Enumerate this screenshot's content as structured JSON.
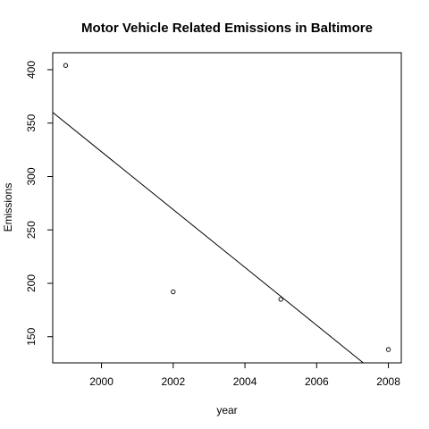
{
  "chart_data": {
    "type": "scatter",
    "title": "Motor Vehicle Related Emissions in Baltimore",
    "xlabel": "year",
    "ylabel": "Emissions",
    "xlim": [
      1998.64,
      2008.36
    ],
    "ylim": [
      125.52,
      415.88
    ],
    "x_ticks": [
      "2000",
      "2002",
      "2004",
      "2006",
      "2008"
    ],
    "y_ticks": [
      "150",
      "200",
      "250",
      "300",
      "350",
      "400"
    ],
    "points": [
      {
        "x": 1999,
        "y": 404
      },
      {
        "x": 2002,
        "y": 192
      },
      {
        "x": 2005,
        "y": 185
      },
      {
        "x": 2008,
        "y": 138
      }
    ],
    "regression_line": {
      "x1": 1998.64,
      "y1": 360,
      "x2": 2007.3,
      "y2": 125.52
    },
    "grid": false,
    "legend": "none"
  }
}
